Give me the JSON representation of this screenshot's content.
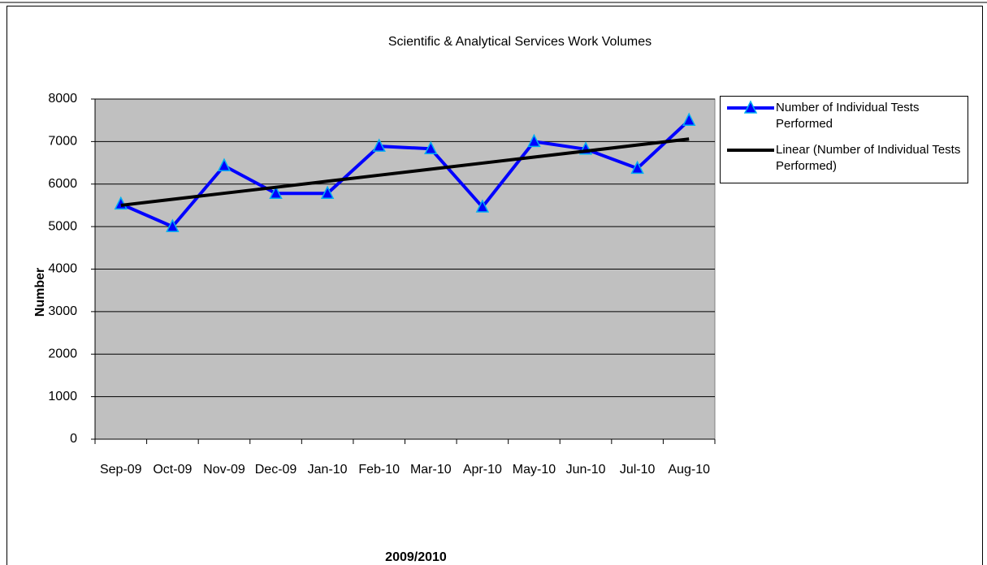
{
  "chart_data": {
    "type": "line",
    "title": "Scientific & Analytical Services Work Volumes",
    "x_label": "2009/2010",
    "y_label": "Number",
    "categories": [
      "Sep-09",
      "Oct-09",
      "Nov-09",
      "Dec-09",
      "Jan-10",
      "Feb-10",
      "Mar-10",
      "Apr-10",
      "May-10",
      "Jun-10",
      "Jul-10",
      "Aug-10"
    ],
    "series": [
      {
        "name": "Number of Individual Tests Performed",
        "color": "#0000ff",
        "marker_color": "#00b0f0",
        "width": 4,
        "marker": true,
        "values": [
          5530,
          5000,
          6430,
          5780,
          5780,
          6890,
          6830,
          5460,
          7000,
          6820,
          6370,
          7500
        ]
      },
      {
        "name": "Linear (Number of Individual Tests Performed)",
        "color": "#000000",
        "width": 4,
        "marker": false,
        "values": [
          5500,
          5642,
          5784,
          5925,
          6067,
          6209,
          6351,
          6493,
          6635,
          6776,
          6918,
          7060
        ]
      }
    ],
    "ylim": [
      0,
      8000
    ],
    "yticks": [
      0,
      1000,
      2000,
      3000,
      4000,
      5000,
      6000,
      7000,
      8000
    ],
    "grid": true,
    "plot_background": "#c0c0c0",
    "legend": "right"
  }
}
